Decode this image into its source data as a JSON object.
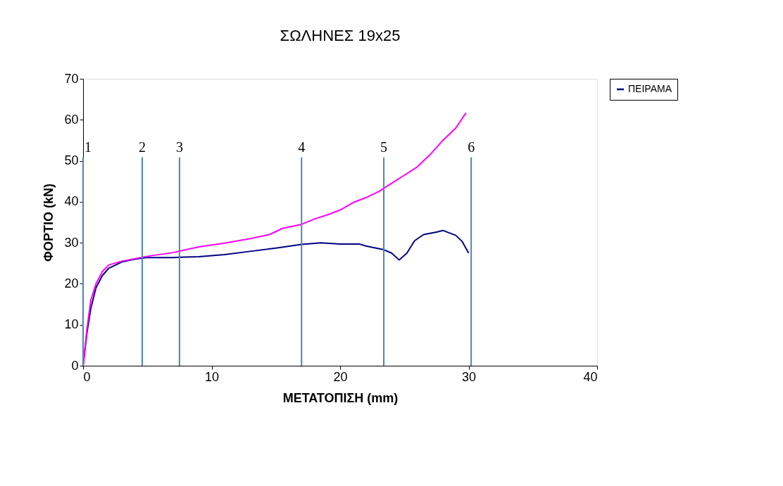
{
  "chart_data": {
    "type": "line",
    "title": "ΣΩΛΗΝΕΣ 19x25",
    "xlabel": "ΜΕΤΑΤΟΠΙΣΗ (mm)",
    "ylabel": "ΦΟΡΤΙΟ (kN)",
    "xlim": [
      0,
      40
    ],
    "xticks": [
      0,
      10,
      20,
      30,
      40
    ],
    "ylim": [
      0,
      70
    ],
    "yticks": [
      0,
      10,
      20,
      30,
      40,
      50,
      60,
      70
    ],
    "grid": false,
    "legend": "right",
    "marker": "none",
    "line_style": "solid",
    "series": [
      {
        "name": "ΠΕΙΡΑΜΑ",
        "color": "#000080",
        "x": [
          0,
          0.3,
          0.6,
          1,
          1.5,
          2,
          3,
          4,
          5,
          7,
          9,
          11,
          13,
          15,
          17,
          18.5,
          20,
          21.5,
          22,
          23.4,
          24,
          24.6,
          25.2,
          25.8,
          26.5,
          27.5,
          28,
          29,
          29.5,
          30
        ],
        "values": [
          0,
          8,
          14,
          19,
          22,
          23.8,
          25.3,
          26,
          26.4,
          26.4,
          26.6,
          27.1,
          27.9,
          28.7,
          29.6,
          30,
          29.7,
          29.7,
          29.2,
          28.3,
          27.5,
          25.8,
          27.5,
          30.5,
          32,
          32.6,
          33,
          31.8,
          30.3,
          27.5
        ]
      },
      {
        "color": "#ff00ff",
        "x": [
          0,
          0.3,
          0.6,
          1,
          1.5,
          2,
          3,
          5,
          7,
          9,
          11,
          13,
          14.5,
          15.5,
          17,
          18,
          19,
          20,
          21,
          22,
          23,
          24,
          25,
          26,
          27,
          28,
          29,
          29.8
        ],
        "values": [
          0,
          9,
          16,
          20,
          23,
          24.6,
          25.5,
          26.7,
          27.6,
          29,
          29.9,
          31,
          32,
          33.5,
          34.5,
          35.8,
          36.8,
          38,
          39.8,
          41,
          42.5,
          44.5,
          46.5,
          48.5,
          51.5,
          55,
          58,
          61.7
        ]
      }
    ],
    "ref_lines": [
      {
        "axis": "x",
        "value": 0,
        "color": "#4f81bd"
      },
      {
        "axis": "x",
        "value": 4.6,
        "color": "#4f81bd"
      },
      {
        "axis": "x",
        "value": 7.5,
        "color": "#4f81bd"
      },
      {
        "axis": "x",
        "value": 17,
        "color": "#4f81bd"
      },
      {
        "axis": "x",
        "value": 23.4,
        "color": "#4f81bd"
      },
      {
        "axis": "x",
        "value": 30.2,
        "color": "#4f81bd"
      }
    ],
    "annotations": [
      {
        "text": "1",
        "x": 0,
        "y": 51.5
      },
      {
        "text": "2",
        "x": 4.6,
        "y": 51.5
      },
      {
        "text": "3",
        "x": 7.5,
        "y": 51.5
      },
      {
        "text": "4",
        "x": 17,
        "y": 51.5
      },
      {
        "text": "5",
        "x": 23.4,
        "y": 51.5
      },
      {
        "text": "6",
        "x": 30.2,
        "y": 51.5
      }
    ]
  }
}
